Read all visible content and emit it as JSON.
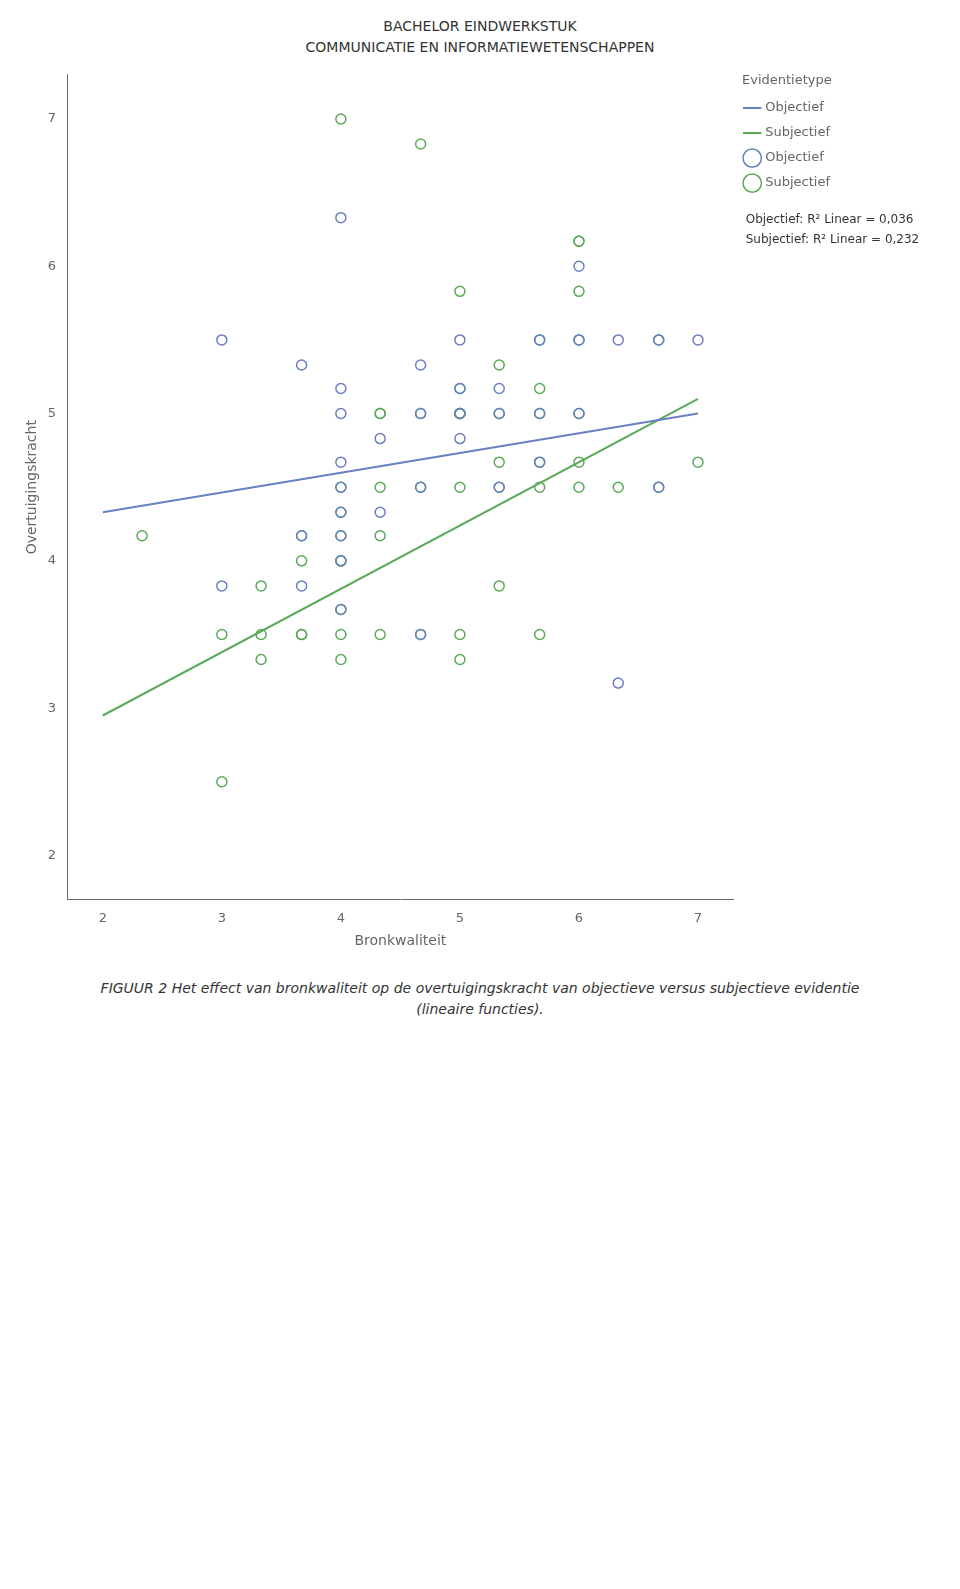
{
  "chart_data": {
    "type": "scatter",
    "title": "BACHELOR EINDWERKSTUK\nCOMMUNICATIE EN INFORMATIEWETENSCHAPPEN",
    "caption": "FIGUUR 2 Het effect van bronkwaliteit op de overtuigingskracht van objectieve versus subjectieve evidentie\n(lineaire functies).",
    "xlabel": "Bronkwaliteit",
    "ylabel": "Overtuigingskracht",
    "xlim": [
      1.7,
      7.3
    ],
    "ylim": [
      1.7,
      7.3
    ],
    "xticks": [
      2,
      3,
      4,
      5,
      6,
      7
    ],
    "yticks": [
      2,
      3,
      4,
      5,
      6,
      7
    ],
    "grid": false,
    "legend": "right",
    "legend_title": "Evidentietype",
    "annotations": [
      "Objectief: R² Linear = 0,036",
      "Subjectief: R² Linear = 0,232"
    ],
    "series": [
      {
        "name": "Objectief",
        "type": "scatter",
        "marker": "circle",
        "color": "#6b7fc4",
        "x": [
          3.0,
          3.0,
          3.67,
          3.67,
          3.67,
          4.0,
          4.0,
          4.0,
          4.0,
          4.0,
          4.0,
          4.0,
          4.0,
          4.0,
          4.33,
          4.33,
          4.67,
          4.67,
          4.67,
          4.67,
          5.0,
          5.0,
          5.0,
          5.0,
          5.33,
          5.33,
          5.33,
          5.67,
          5.67,
          5.67,
          6.0,
          6.0,
          6.0,
          6.33,
          6.33,
          6.67,
          6.67,
          7.0
        ],
        "values": [
          3.83,
          5.5,
          3.83,
          4.17,
          5.33,
          3.67,
          4.0,
          4.17,
          4.33,
          4.5,
          4.67,
          5.0,
          5.17,
          6.33,
          4.33,
          4.83,
          3.5,
          4.5,
          5.0,
          5.33,
          4.83,
          5.0,
          5.17,
          5.5,
          4.5,
          5.0,
          5.17,
          4.67,
          5.0,
          5.5,
          5.0,
          5.5,
          6.0,
          3.17,
          5.5,
          4.5,
          5.5,
          5.5
        ]
      },
      {
        "name": "Subjectief",
        "type": "scatter",
        "marker": "circle",
        "color": "#5aaa5a",
        "x": [
          2.33,
          3.0,
          3.0,
          3.33,
          3.33,
          3.33,
          3.67,
          3.67,
          3.67,
          3.67,
          4.0,
          4.0,
          4.0,
          4.0,
          4.0,
          4.0,
          4.0,
          4.0,
          4.33,
          4.33,
          4.33,
          4.33,
          4.33,
          4.67,
          4.67,
          4.67,
          5.0,
          5.0,
          5.0,
          5.0,
          5.0,
          5.0,
          5.0,
          5.0,
          5.0,
          5.33,
          5.33,
          5.33,
          5.33,
          5.33,
          5.67,
          5.67,
          5.67,
          5.67,
          5.67,
          5.67,
          6.0,
          6.0,
          6.0,
          6.0,
          6.0,
          6.0,
          6.0,
          6.33,
          6.67,
          6.67,
          7.0,
          4.0,
          4.67
        ],
        "values": [
          4.17,
          2.5,
          3.5,
          3.33,
          3.5,
          3.83,
          3.5,
          3.5,
          4.0,
          4.17,
          3.33,
          3.5,
          3.67,
          4.0,
          4.0,
          4.17,
          4.33,
          4.5,
          3.5,
          4.17,
          4.5,
          5.0,
          5.0,
          3.5,
          4.5,
          5.0,
          3.33,
          3.5,
          4.5,
          5.0,
          5.0,
          5.0,
          5.0,
          5.17,
          5.83,
          3.83,
          4.5,
          4.67,
          5.0,
          5.33,
          3.5,
          4.5,
          4.67,
          5.0,
          5.17,
          5.5,
          4.5,
          4.67,
          5.0,
          5.5,
          5.83,
          6.17,
          6.17,
          4.5,
          4.5,
          5.5,
          4.67,
          7.0,
          6.83
        ]
      },
      {
        "name": "Objectief",
        "type": "line",
        "line_style": "solid",
        "color": "#6b7fc4",
        "x": [
          2.0,
          7.0
        ],
        "values": [
          4.33,
          5.0
        ]
      },
      {
        "name": "Subjectief",
        "type": "line",
        "line_style": "solid",
        "color": "#5aaa5a",
        "x": [
          2.0,
          7.0
        ],
        "values": [
          2.95,
          5.1
        ]
      }
    ]
  }
}
